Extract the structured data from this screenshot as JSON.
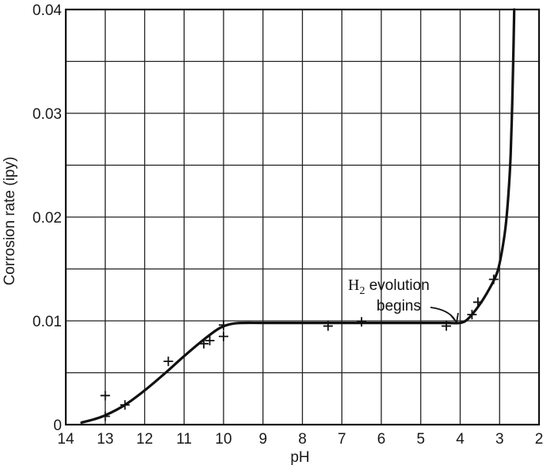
{
  "chart_data": {
    "type": "line",
    "title": "",
    "xlabel": "pH",
    "ylabel": "Corrosion rate (ipy)",
    "xlim": [
      14,
      2
    ],
    "ylim": [
      0,
      0.04
    ],
    "x_reversed": true,
    "grid": true,
    "x_ticks": [
      14,
      13,
      12,
      11,
      10,
      9,
      8,
      7,
      6,
      5,
      4,
      3,
      2
    ],
    "x_tick_labels": [
      "14",
      "13",
      "12",
      "11",
      "10",
      "9",
      "8",
      "7",
      "6",
      "5",
      "4",
      "3",
      "2"
    ],
    "y_ticks": [
      0,
      0.01,
      0.02,
      0.03,
      0.04
    ],
    "y_tick_labels": [
      "0",
      "0.01",
      "0.02",
      "0.03",
      "0.04"
    ],
    "series": [
      {
        "kind": "curve",
        "x": [
          13.6,
          13.3,
          13.0,
          12.5,
          12.0,
          11.5,
          11.0,
          10.5,
          10.1,
          9.8,
          9.5,
          9.0,
          8.0,
          7.0,
          6.0,
          5.0,
          4.3,
          4.0,
          3.8,
          3.5,
          3.2,
          3.05,
          2.95,
          2.85,
          2.78,
          2.72,
          2.68,
          2.65,
          2.63
        ],
        "y": [
          0.0002,
          0.0005,
          0.0009,
          0.0019,
          0.0033,
          0.0049,
          0.0066,
          0.0082,
          0.0093,
          0.0097,
          0.0098,
          0.0098,
          0.0098,
          0.0098,
          0.0098,
          0.0098,
          0.0098,
          0.0098,
          0.0102,
          0.0116,
          0.0135,
          0.0148,
          0.0165,
          0.019,
          0.022,
          0.026,
          0.031,
          0.036,
          0.04
        ]
      },
      {
        "kind": "points",
        "x": [
          13.0,
          13.0,
          12.5,
          11.4,
          10.5,
          10.35,
          10.0,
          10.0,
          7.35,
          6.5,
          4.35,
          3.7,
          3.55,
          3.15
        ],
        "y": [
          0.0028,
          0.0008,
          0.0019,
          0.0061,
          0.0078,
          0.0081,
          0.0085,
          0.0096,
          0.0095,
          0.0099,
          0.0095,
          0.0106,
          0.0118,
          0.014
        ]
      }
    ],
    "annotations": [
      {
        "text_main": "H",
        "text_sub": "2",
        "text_rest": " evolution",
        "text_line2": "begins",
        "target_x": 4.0,
        "target_y": 0.0098
      }
    ]
  }
}
